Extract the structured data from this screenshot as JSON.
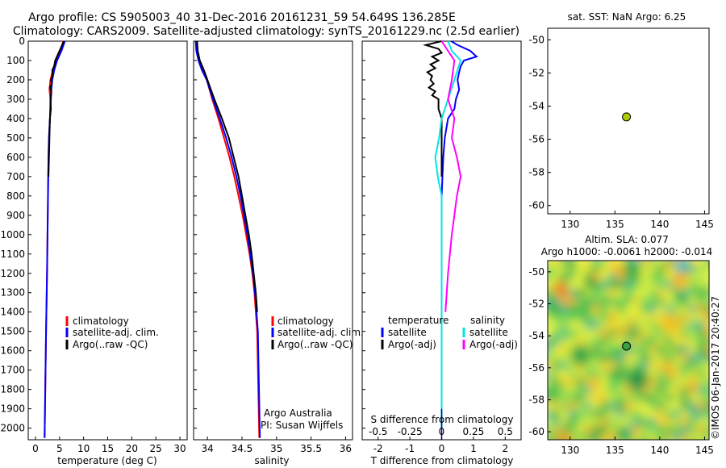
{
  "header": {
    "title_line1": "Argo profile: CS 5905003_40 31-Dec-2016 20161231_59 54.649S 136.285E",
    "title_line2": "Climatology: CARS2009. Satellite-adjusted climatology: synTS_20161229.nc (2.5d earlier)"
  },
  "colors": {
    "climatology": "#ff0000",
    "satellite": "#0000ff",
    "argo": "#000000",
    "diff_sat_salinity": "#00e5e5",
    "diff_argo_salinity": "#ff00ff",
    "marker": "#aacc00"
  },
  "chart_data": [
    {
      "type": "line",
      "name": "temperature-profile",
      "xlabel": "temperature (deg C)",
      "xlim": [
        -1.5,
        31.5
      ],
      "ylim": [
        2060,
        0
      ],
      "xticks": [
        0,
        5,
        10,
        15,
        20,
        25,
        30
      ],
      "yticks": [
        0,
        100,
        200,
        300,
        400,
        500,
        600,
        700,
        800,
        900,
        1000,
        1100,
        1200,
        1300,
        1400,
        1500,
        1600,
        1700,
        1800,
        1900,
        2000
      ],
      "legend": [
        "climatology",
        "satellite-adj. clim.",
        "Argo(..raw -QC)"
      ],
      "series": [
        {
          "name": "climatology",
          "depth": [
            0,
            50,
            100,
            150,
            200,
            250,
            300,
            400,
            500,
            600,
            800,
            1000,
            1200,
            1500,
            2050
          ],
          "values": [
            5.8,
            5.1,
            4.2,
            3.6,
            3.1,
            2.9,
            3.1,
            3.0,
            2.8,
            2.7,
            2.6,
            2.5,
            2.4,
            2.2,
            1.9
          ]
        },
        {
          "name": "satellite-adj. clim.",
          "depth": [
            0,
            50,
            100,
            150,
            200,
            250,
            300,
            400,
            500,
            600,
            800,
            1000,
            1200,
            1500,
            2050
          ],
          "values": [
            6.1,
            5.4,
            4.5,
            3.9,
            3.5,
            3.3,
            3.2,
            3.0,
            2.8,
            2.7,
            2.6,
            2.5,
            2.4,
            2.2,
            1.9
          ]
        },
        {
          "name": "Argo(..raw -QC)",
          "depth": [
            0,
            50,
            100,
            130,
            150,
            180,
            200,
            220,
            240,
            260,
            300,
            350,
            400,
            500,
            600,
            700
          ],
          "values": [
            5.9,
            5.0,
            4.1,
            3.9,
            3.5,
            3.6,
            3.2,
            3.4,
            3.0,
            3.3,
            3.1,
            3.2,
            3.0,
            2.9,
            2.8,
            2.7
          ]
        }
      ]
    },
    {
      "type": "line",
      "name": "salinity-profile",
      "xlabel": "salinity",
      "xlim": [
        33.8,
        36.1
      ],
      "ylim": [
        2060,
        0
      ],
      "xticks": [
        34,
        34.5,
        35,
        35.5,
        36
      ],
      "legend": [
        "climatology",
        "satellite-adj. clim.",
        "Argo(..raw -QC)"
      ],
      "annotations": [
        "Argo Australia",
        "PI: Susan Wijffels"
      ],
      "series": [
        {
          "name": "climatology",
          "depth": [
            0,
            50,
            100,
            150,
            200,
            300,
            400,
            500,
            600,
            700,
            800,
            900,
            1000,
            1100,
            1200,
            1300,
            1500,
            2050
          ],
          "values": [
            33.84,
            33.85,
            33.88,
            33.93,
            33.99,
            34.07,
            34.16,
            34.24,
            34.32,
            34.39,
            34.45,
            34.51,
            34.56,
            34.61,
            34.65,
            34.68,
            34.72,
            34.75
          ]
        },
        {
          "name": "satellite-adj. clim.",
          "depth": [
            0,
            50,
            100,
            150,
            200,
            300,
            400,
            500,
            600,
            700,
            800,
            900,
            1000,
            1100,
            1200,
            1300,
            1500,
            2050
          ],
          "values": [
            33.83,
            33.84,
            33.87,
            33.92,
            33.99,
            34.08,
            34.18,
            34.27,
            34.35,
            34.42,
            34.48,
            34.53,
            34.58,
            34.62,
            34.66,
            34.69,
            34.73,
            34.76
          ]
        },
        {
          "name": "Argo(..raw -QC)",
          "depth": [
            0,
            50,
            100,
            150,
            200,
            250,
            300,
            400,
            500,
            600,
            700,
            800,
            900,
            1000,
            1100,
            1200,
            1300,
            1400
          ],
          "values": [
            33.85,
            33.86,
            33.89,
            33.95,
            34.0,
            34.05,
            34.1,
            34.21,
            34.31,
            34.38,
            34.45,
            34.5,
            34.55,
            34.6,
            34.64,
            34.67,
            34.7,
            34.72
          ]
        }
      ]
    },
    {
      "type": "line",
      "name": "difference-from-climatology",
      "xlabel": "T difference from climatology",
      "xlabel_top": "S difference from climatology",
      "xlim": [
        -2.5,
        2.5
      ],
      "ylim": [
        2060,
        0
      ],
      "xticks": [
        -2,
        -1,
        0,
        1,
        2
      ],
      "xticks_top": [
        "-0.5",
        "-0.25",
        "0",
        "0.25",
        "0.5"
      ],
      "legend_left_title": "temperature",
      "legend_right_title": "salinity",
      "legend": [
        "satellite",
        "Argo(-adj)",
        "satellite",
        "Argo(-adj)"
      ],
      "series": [
        {
          "name": "temperature satellite",
          "depth": [
            0,
            20,
            50,
            80,
            100,
            130,
            160,
            200,
            250,
            300,
            350,
            400,
            500,
            600,
            800,
            1000,
            1500,
            1900
          ],
          "values": [
            0.3,
            0.5,
            0.9,
            1.1,
            0.7,
            0.6,
            0.55,
            0.5,
            0.55,
            0.45,
            0.4,
            0.2,
            0.1,
            0.05,
            0.0,
            0.0,
            0.0,
            0.0
          ]
        },
        {
          "name": "temperature Argo(-adj)",
          "depth": [
            0,
            20,
            40,
            60,
            80,
            100,
            120,
            140,
            160,
            180,
            200,
            220,
            240,
            260,
            280,
            300,
            350,
            400,
            500,
            600,
            700
          ],
          "values": [
            0.0,
            -0.5,
            -0.1,
            0.0,
            -0.3,
            -0.1,
            -0.35,
            -0.2,
            -0.45,
            -0.3,
            -0.35,
            -0.25,
            -0.4,
            -0.2,
            -0.3,
            -0.1,
            -0.1,
            0.0,
            0.0,
            0.0,
            0.0
          ]
        },
        {
          "name": "salinity satellite",
          "depth": [
            0,
            50,
            100,
            200,
            300,
            400,
            500,
            600,
            700,
            800,
            1000,
            1500,
            2000
          ],
          "values": [
            0.05,
            0.08,
            0.15,
            0.1,
            0.05,
            0.0,
            -0.02,
            -0.05,
            -0.03,
            0.0,
            0.0,
            0.0,
            0.0
          ]
        },
        {
          "name": "salinity Argo(-adj)",
          "depth": [
            0,
            50,
            100,
            200,
            300,
            400,
            500,
            600,
            700,
            800,
            900,
            1000,
            1200,
            1400
          ],
          "values": [
            0.0,
            0.05,
            0.1,
            0.08,
            0.05,
            0.1,
            0.08,
            0.12,
            0.15,
            0.12,
            0.1,
            0.08,
            0.05,
            0.03
          ]
        }
      ]
    },
    {
      "type": "scatter",
      "name": "sst-map",
      "title": "sat. SST: NaN Argo: 6.25",
      "xlim": [
        127.5,
        145.5
      ],
      "ylim": [
        -60.5,
        -49.3
      ],
      "xticks": [
        130,
        135,
        140,
        145
      ],
      "yticks": [
        -50,
        -52,
        -54,
        -56,
        -58,
        -60
      ],
      "points": [
        {
          "x": 136.285,
          "y": -54.649
        }
      ]
    },
    {
      "type": "heatmap",
      "name": "sla-map",
      "title_line1": "Altim. SLA: 0.077",
      "title_line2": "Argo h1000: -0.0061 h2000: -0.014",
      "xlim": [
        127.5,
        145.5
      ],
      "ylim": [
        -60.5,
        -49.3
      ],
      "xticks": [
        130,
        135,
        140,
        145
      ],
      "yticks": [
        -50,
        -52,
        -54,
        -56,
        -58,
        -60
      ],
      "points": [
        {
          "x": 136.285,
          "y": -54.649
        }
      ]
    }
  ],
  "stamp": "©IMOS 06-Jan-2017 20:40:27"
}
